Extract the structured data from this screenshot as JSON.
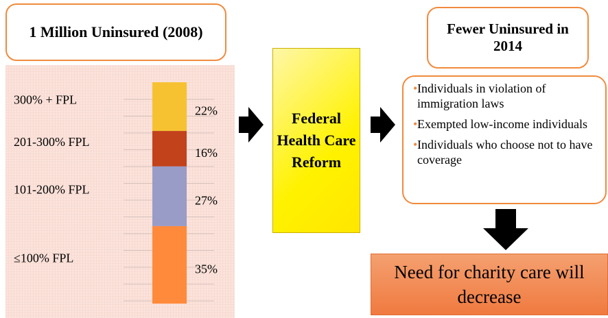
{
  "left_title": "1 Million Uninsured (2008)",
  "chart_data": {
    "type": "stacked-bar",
    "categories": [
      "≤100%  FPL",
      "101-200%  FPL",
      "201-300%  FPL",
      "300% + FPL"
    ],
    "values": [
      35,
      27,
      16,
      22
    ],
    "value_labels": [
      "35%",
      "27%",
      "16%",
      "22%"
    ],
    "colors": [
      "#ff8a3c",
      "#9a9cc8",
      "#c2421c",
      "#f6c232"
    ],
    "ylim": [
      0,
      100
    ]
  },
  "reform_box": "Federal Health Care Reform",
  "right_title": "Fewer Uninsured in 2014",
  "list": [
    "Individuals in violation of immigration laws",
    "Exempted low-income individuals",
    "Individuals who choose not to have coverage"
  ],
  "conclusion": "Need for charity care will decrease"
}
